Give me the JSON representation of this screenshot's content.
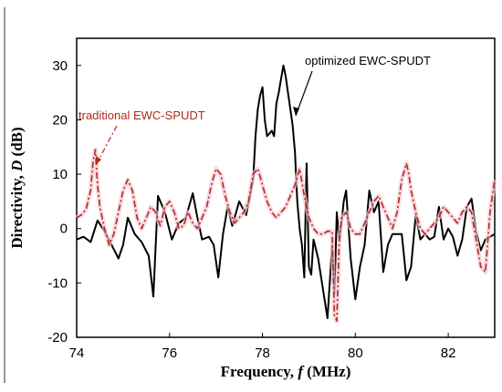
{
  "chart_data": {
    "type": "line",
    "xlabel": {
      "main": "Frequency, ",
      "var": "f",
      "unit": " (MHz)"
    },
    "ylabel": {
      "main": "Directivity, ",
      "var": "D",
      "unit": " (dB)"
    },
    "xlim": [
      74,
      83
    ],
    "ylim": [
      -20,
      35
    ],
    "xticks": [
      74,
      76,
      78,
      80,
      82
    ],
    "yticks": [
      -20,
      -10,
      0,
      10,
      20,
      30
    ],
    "grid": false,
    "series": [
      {
        "name": "optimized EWC-SPUDT",
        "color": "#000000",
        "style": "solid",
        "x": [
          74.0,
          74.15,
          74.3,
          74.45,
          74.6,
          74.75,
          74.9,
          75.0,
          75.1,
          75.25,
          75.4,
          75.55,
          75.65,
          75.75,
          75.9,
          76.05,
          76.2,
          76.35,
          76.5,
          76.6,
          76.7,
          76.85,
          76.95,
          77.05,
          77.15,
          77.25,
          77.35,
          77.5,
          77.65,
          77.8,
          77.85,
          77.9,
          77.95,
          78.0,
          78.05,
          78.1,
          78.15,
          78.2,
          78.25,
          78.3,
          78.35,
          78.4,
          78.45,
          78.5,
          78.55,
          78.6,
          78.65,
          78.7,
          78.75,
          78.8,
          78.85,
          78.9,
          78.95,
          79.0,
          79.05,
          79.1,
          79.2,
          79.3,
          79.4,
          79.5,
          79.55,
          79.6,
          79.65,
          79.7,
          79.75,
          79.8,
          79.9,
          80.0,
          80.1,
          80.2,
          80.3,
          80.4,
          80.5,
          80.6,
          80.7,
          80.8,
          80.9,
          81.0,
          81.1,
          81.2,
          81.3,
          81.4,
          81.5,
          81.6,
          81.7,
          81.8,
          81.9,
          82.0,
          82.1,
          82.2,
          82.3,
          82.4,
          82.5,
          82.6,
          82.7,
          82.8,
          82.9,
          83.0
        ],
        "y": [
          -2,
          -1.5,
          -2.5,
          1.5,
          -0.5,
          -3,
          -5.5,
          -3,
          2,
          -1,
          -2.5,
          -5,
          -12.5,
          6,
          3,
          -2,
          1,
          2,
          6.5,
          2,
          -2,
          -1.5,
          -3,
          -9,
          -1,
          4,
          0.5,
          5,
          2.5,
          9,
          17,
          22,
          24.5,
          26,
          20,
          17,
          17.5,
          18,
          17,
          23,
          25,
          27.5,
          30,
          28,
          25,
          22,
          19,
          14,
          5,
          0,
          -3,
          -9,
          12,
          -7,
          -8.5,
          -2,
          -5.5,
          -11,
          -16.5,
          -3,
          -12,
          3,
          -2,
          1,
          5,
          7,
          -5.5,
          -13,
          -7,
          -3,
          7,
          3,
          5,
          -8,
          -3,
          -1,
          -1,
          -1,
          -9.5,
          -7,
          2.5,
          -2,
          -1,
          -2,
          -1.5,
          4,
          -2,
          0,
          -1.5,
          -5,
          -2,
          4,
          5.5,
          -0.5,
          -4,
          -2,
          -1.5,
          -1
        ]
      },
      {
        "name": "traditional EWC-SPUDT",
        "color": "#b22a1a",
        "style": "dash-dot",
        "x": [
          74.0,
          74.1,
          74.2,
          74.3,
          74.35,
          74.4,
          74.45,
          74.5,
          74.6,
          74.7,
          74.8,
          74.9,
          75.0,
          75.1,
          75.2,
          75.3,
          75.4,
          75.5,
          75.6,
          75.7,
          75.8,
          75.9,
          76.0,
          76.1,
          76.2,
          76.3,
          76.4,
          76.5,
          76.6,
          76.7,
          76.8,
          76.9,
          77.0,
          77.1,
          77.2,
          77.3,
          77.4,
          77.5,
          77.6,
          77.7,
          77.8,
          77.9,
          78.0,
          78.1,
          78.2,
          78.3,
          78.4,
          78.5,
          78.6,
          78.7,
          78.8,
          78.9,
          79.0,
          79.1,
          79.2,
          79.3,
          79.4,
          79.5,
          79.55,
          79.6,
          79.65,
          79.7,
          79.8,
          79.9,
          80.0,
          80.1,
          80.2,
          80.3,
          80.4,
          80.5,
          80.6,
          80.7,
          80.8,
          80.9,
          81.0,
          81.1,
          81.15,
          81.2,
          81.3,
          81.4,
          81.5,
          81.6,
          81.7,
          81.8,
          81.9,
          82.0,
          82.1,
          82.2,
          82.3,
          82.4,
          82.5,
          82.6,
          82.7,
          82.8,
          82.9,
          83.0
        ],
        "y": [
          2,
          2.5,
          3.5,
          7,
          12,
          14.5,
          8,
          4,
          0,
          -3,
          -1,
          3,
          7,
          9,
          7,
          2,
          0,
          2,
          4,
          3,
          0.5,
          4,
          5,
          3,
          0,
          0.5,
          3,
          1,
          0,
          2,
          4,
          8,
          11,
          10,
          6,
          3,
          1,
          2,
          3,
          5,
          10,
          11,
          8,
          5,
          3,
          2,
          3,
          4,
          6,
          8,
          11,
          6,
          2,
          0,
          -1,
          -1,
          -0.5,
          -0.5,
          -16,
          -17,
          -3,
          2,
          3,
          0,
          -1,
          -1,
          1,
          3,
          5,
          6,
          4,
          2,
          0,
          3,
          9,
          12,
          10,
          7,
          3,
          0,
          -1,
          0,
          1,
          2,
          4,
          3,
          2,
          1,
          3,
          4,
          3,
          -2,
          -7,
          -8,
          3,
          9
        ]
      }
    ],
    "annotations": [
      {
        "text": "optimized EWC-SPUDT",
        "color": "#000000"
      },
      {
        "text": "traditional EWC-SPUDT",
        "color": "#b22a1a"
      }
    ]
  }
}
